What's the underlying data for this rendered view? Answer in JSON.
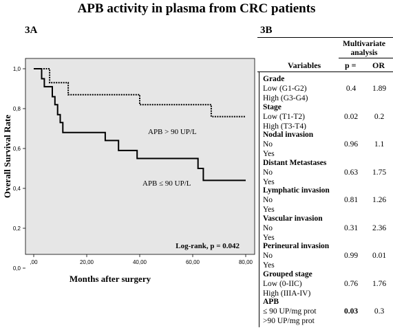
{
  "title": "APB activity in plasma from CRC patients",
  "panel_a_label": "3A",
  "panel_b_label": "3B",
  "chart_data": {
    "type": "line",
    "title": "",
    "xlabel": "Months after surgery",
    "ylabel": "Overall Survival Rate",
    "xlim": [
      0,
      80
    ],
    "ylim": [
      0,
      1
    ],
    "x_ticks": [
      ",00",
      "20,00",
      "40,00",
      "60,00",
      "80,00"
    ],
    "y_ticks": [
      "0,0",
      "0,2",
      "0,4",
      "0,6",
      "0,8",
      "1,0"
    ],
    "grid": false,
    "plot_background": "#e6e6e6",
    "annotation": "Log-rank,  p = 0.042",
    "series": [
      {
        "name": "APB > 90 UP/L",
        "style": "dotted",
        "color": "#000000",
        "step_points": [
          [
            0,
            1.0
          ],
          [
            6,
            1.0
          ],
          [
            6,
            0.93
          ],
          [
            13,
            0.93
          ],
          [
            13,
            0.87
          ],
          [
            40,
            0.87
          ],
          [
            40,
            0.82
          ],
          [
            63,
            0.82
          ],
          [
            63,
            0.82
          ],
          [
            67,
            0.82
          ],
          [
            67,
            0.76
          ],
          [
            80,
            0.76
          ]
        ]
      },
      {
        "name": "APB ≤ 90 UP/L",
        "style": "solid",
        "color": "#000000",
        "step_points": [
          [
            0,
            1.0
          ],
          [
            3,
            1.0
          ],
          [
            3,
            0.95
          ],
          [
            4,
            0.95
          ],
          [
            4,
            0.91
          ],
          [
            7,
            0.91
          ],
          [
            7,
            0.86
          ],
          [
            8,
            0.86
          ],
          [
            8,
            0.82
          ],
          [
            9,
            0.82
          ],
          [
            9,
            0.77
          ],
          [
            10,
            0.77
          ],
          [
            10,
            0.73
          ],
          [
            11,
            0.73
          ],
          [
            11,
            0.68
          ],
          [
            27,
            0.68
          ],
          [
            27,
            0.64
          ],
          [
            32,
            0.64
          ],
          [
            32,
            0.59
          ],
          [
            39,
            0.59
          ],
          [
            39,
            0.55
          ],
          [
            62,
            0.55
          ],
          [
            62,
            0.5
          ],
          [
            64,
            0.5
          ],
          [
            64,
            0.44
          ],
          [
            80,
            0.44
          ]
        ]
      }
    ]
  },
  "table": {
    "multivariate_header": "Multivariate analysis",
    "col_variables": "Variables",
    "col_p": "p =",
    "col_or": "OR",
    "rows": [
      {
        "group": "Grade",
        "lines": [
          "Low (G1-G2)",
          "High (G3-G4)"
        ],
        "p": "0.4",
        "or": "1.89"
      },
      {
        "group": "Stage",
        "lines": [
          "Low (T1-T2)",
          "High  (T3-T4)"
        ],
        "p": "0.02",
        "or": "0.2"
      },
      {
        "group": "Nodal invasion",
        "lines": [
          "No",
          "Yes"
        ],
        "p": "0.96",
        "or": "1.1"
      },
      {
        "group": "Distant Metastases",
        "lines": [
          "No",
          "Yes"
        ],
        "p": "0.63",
        "or": "1.75"
      },
      {
        "group": "Lymphatic invasion",
        "lines": [
          "No",
          "Yes"
        ],
        "p": "0.81",
        "or": "1.26"
      },
      {
        "group": "Vascular invasion",
        "lines": [
          "No",
          "Yes"
        ],
        "p": "0.31",
        "or": "2.36"
      },
      {
        "group": "Perineural invasion",
        "lines": [
          "No",
          "Yes"
        ],
        "p": "0.99",
        "or": "0.01"
      },
      {
        "group": "Grouped stage",
        "lines": [
          "Low (0-IIC)",
          "High (IIIA-IV)"
        ],
        "p": "0.76",
        "or": "1.76"
      },
      {
        "group": "APB",
        "lines": [
          "≤ 90 UP/mg prot",
          ">90 UP/mg prot"
        ],
        "p": "0.03",
        "or": "0.3",
        "p_bold": true
      }
    ]
  }
}
